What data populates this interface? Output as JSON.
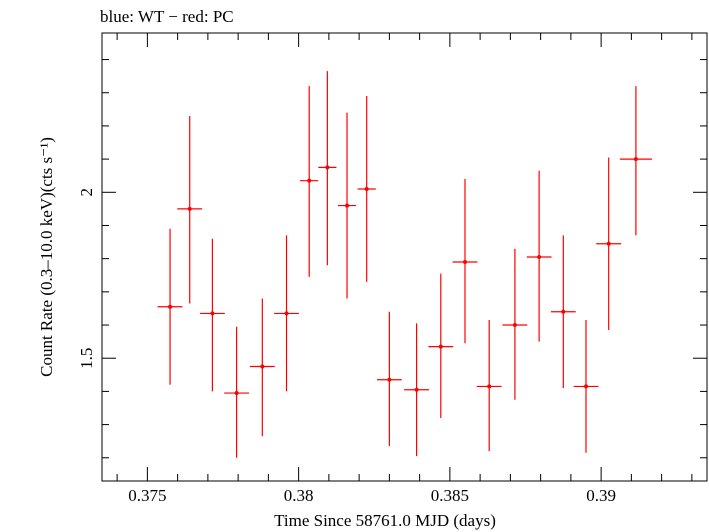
{
  "chart_data": {
    "type": "scatter",
    "title": "blue: WT − red: PC",
    "xlabel": "Time Since 58761.0 MJD (days)",
    "ylabel": "Count Rate (0.3–10.0 keV)(cts s⁻¹)",
    "xlim": [
      0.3735,
      0.3935
    ],
    "ylim": [
      1.13,
      2.48
    ],
    "x_ticks": [
      {
        "value": 0.375,
        "label": "0.375"
      },
      {
        "value": 0.38,
        "label": "0.38"
      },
      {
        "value": 0.385,
        "label": "0.385"
      },
      {
        "value": 0.39,
        "label": "0.39"
      }
    ],
    "y_ticks": [
      {
        "value": 1.5,
        "label": "1.5"
      },
      {
        "value": 2.0,
        "label": "2"
      }
    ],
    "series": [
      {
        "color": "#ff0000",
        "points": [
          {
            "x": 0.37575,
            "y": 1.655,
            "xerr": 0.00041,
            "ylo": 1.42,
            "yhi": 1.89
          },
          {
            "x": 0.3764,
            "y": 1.95,
            "xerr": 0.00041,
            "ylo": 1.665,
            "yhi": 2.23
          },
          {
            "x": 0.37715,
            "y": 1.635,
            "xerr": 0.00041,
            "ylo": 1.4,
            "yhi": 1.86
          },
          {
            "x": 0.37795,
            "y": 1.395,
            "xerr": 0.00041,
            "ylo": 1.2,
            "yhi": 1.595
          },
          {
            "x": 0.3788,
            "y": 1.475,
            "xerr": 0.00041,
            "ylo": 1.265,
            "yhi": 1.68
          },
          {
            "x": 0.3796,
            "y": 1.635,
            "xerr": 0.00041,
            "ylo": 1.4,
            "yhi": 1.87
          },
          {
            "x": 0.38035,
            "y": 2.035,
            "xerr": 0.0003,
            "ylo": 1.745,
            "yhi": 2.32
          },
          {
            "x": 0.38095,
            "y": 2.075,
            "xerr": 0.0003,
            "ylo": 1.78,
            "yhi": 2.365
          },
          {
            "x": 0.3816,
            "y": 1.96,
            "xerr": 0.0003,
            "ylo": 1.68,
            "yhi": 2.24
          },
          {
            "x": 0.38225,
            "y": 2.01,
            "xerr": 0.0003,
            "ylo": 1.73,
            "yhi": 2.29
          },
          {
            "x": 0.383,
            "y": 1.435,
            "xerr": 0.00041,
            "ylo": 1.235,
            "yhi": 1.64
          },
          {
            "x": 0.3839,
            "y": 1.405,
            "xerr": 0.00041,
            "ylo": 1.205,
            "yhi": 1.605
          },
          {
            "x": 0.3847,
            "y": 1.535,
            "xerr": 0.00041,
            "ylo": 1.32,
            "yhi": 1.755
          },
          {
            "x": 0.3855,
            "y": 1.79,
            "xerr": 0.00041,
            "ylo": 1.545,
            "yhi": 2.04
          },
          {
            "x": 0.3863,
            "y": 1.415,
            "xerr": 0.00041,
            "ylo": 1.22,
            "yhi": 1.615
          },
          {
            "x": 0.38715,
            "y": 1.6,
            "xerr": 0.00041,
            "ylo": 1.375,
            "yhi": 1.83
          },
          {
            "x": 0.38795,
            "y": 1.805,
            "xerr": 0.00041,
            "ylo": 1.55,
            "yhi": 2.065
          },
          {
            "x": 0.38875,
            "y": 1.64,
            "xerr": 0.00041,
            "ylo": 1.41,
            "yhi": 1.87
          },
          {
            "x": 0.3895,
            "y": 1.415,
            "xerr": 0.00041,
            "ylo": 1.215,
            "yhi": 1.615
          },
          {
            "x": 0.39025,
            "y": 1.845,
            "xerr": 0.00041,
            "ylo": 1.585,
            "yhi": 2.105
          },
          {
            "x": 0.39115,
            "y": 2.1,
            "xerr": 0.00053,
            "ylo": 1.87,
            "yhi": 2.32
          }
        ]
      }
    ]
  }
}
